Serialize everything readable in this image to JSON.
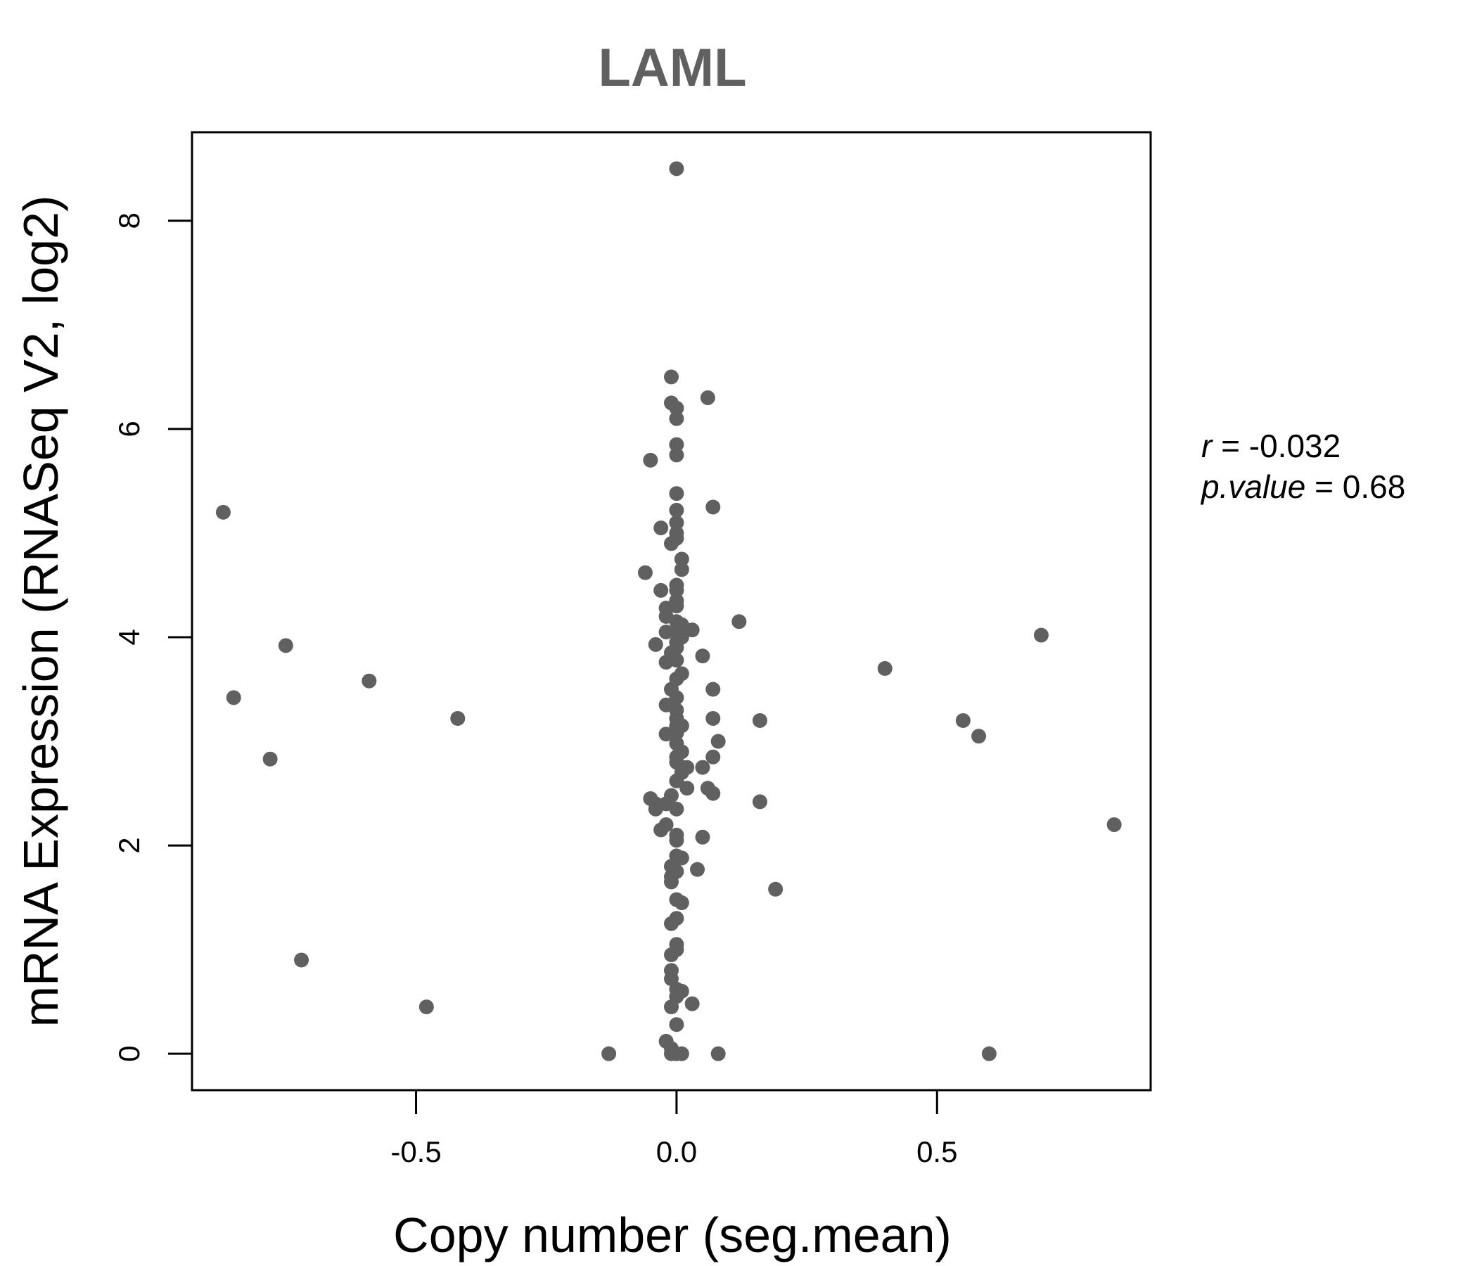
{
  "chart_data": {
    "type": "scatter",
    "title": "LAML",
    "xlabel": "Copy number (seg.mean)",
    "ylabel": "mRNA Expression (RNASeq V2, log2)",
    "xlim": [
      -0.93,
      0.91
    ],
    "ylim": [
      -0.35,
      8.85
    ],
    "xticks": [
      -0.5,
      0.0,
      0.5
    ],
    "xtick_labels": [
      "-0.5",
      "0.0",
      "0.5"
    ],
    "yticks": [
      0,
      2,
      4,
      6,
      8
    ],
    "ytick_labels": [
      "0",
      "2",
      "4",
      "6",
      "8"
    ],
    "grid": false,
    "marker_color": "#606060",
    "stats": {
      "r_label": "r",
      "r_value": "-0.032",
      "p_label": "p.value",
      "p_value": "0.68"
    },
    "points": [
      [
        0.0,
        8.5
      ],
      [
        -0.01,
        6.5
      ],
      [
        -0.01,
        6.25
      ],
      [
        0.0,
        6.2
      ],
      [
        0.0,
        6.1
      ],
      [
        0.06,
        6.3
      ],
      [
        0.0,
        5.85
      ],
      [
        0.0,
        5.75
      ],
      [
        -0.05,
        5.7
      ],
      [
        0.0,
        5.38
      ],
      [
        0.0,
        5.22
      ],
      [
        0.07,
        5.25
      ],
      [
        0.0,
        5.1
      ],
      [
        0.0,
        5.0
      ],
      [
        0.0,
        4.95
      ],
      [
        -0.03,
        5.05
      ],
      [
        -0.01,
        4.9
      ],
      [
        0.01,
        4.75
      ],
      [
        0.01,
        4.65
      ],
      [
        -0.06,
        4.62
      ],
      [
        0.0,
        4.5
      ],
      [
        0.0,
        4.45
      ],
      [
        -0.03,
        4.45
      ],
      [
        0.0,
        4.35
      ],
      [
        0.0,
        4.3
      ],
      [
        -0.02,
        4.28
      ],
      [
        -0.02,
        4.2
      ],
      [
        0.0,
        4.15
      ],
      [
        0.01,
        4.12
      ],
      [
        0.0,
        4.05
      ],
      [
        -0.02,
        4.05
      ],
      [
        0.03,
        4.07
      ],
      [
        0.01,
        4.0
      ],
      [
        0.0,
        3.95
      ],
      [
        -0.04,
        3.93
      ],
      [
        0.0,
        3.9
      ],
      [
        -0.01,
        3.85
      ],
      [
        0.0,
        3.78
      ],
      [
        -0.02,
        3.76
      ],
      [
        0.05,
        3.82
      ],
      [
        0.12,
        4.15
      ],
      [
        0.01,
        3.65
      ],
      [
        0.0,
        3.6
      ],
      [
        -0.01,
        3.5
      ],
      [
        0.07,
        3.5
      ],
      [
        0.0,
        3.42
      ],
      [
        -0.02,
        3.35
      ],
      [
        0.0,
        3.3
      ],
      [
        0.0,
        3.22
      ],
      [
        0.07,
        3.22
      ],
      [
        0.16,
        3.2
      ],
      [
        0.0,
        3.15
      ],
      [
        0.01,
        3.15
      ],
      [
        0.0,
        3.08
      ],
      [
        -0.02,
        3.07
      ],
      [
        0.08,
        3.0
      ],
      [
        0.0,
        2.98
      ],
      [
        0.01,
        2.9
      ],
      [
        0.0,
        2.85
      ],
      [
        0.07,
        2.85
      ],
      [
        0.0,
        2.8
      ],
      [
        0.01,
        2.75
      ],
      [
        0.02,
        2.75
      ],
      [
        0.05,
        2.75
      ],
      [
        0.01,
        2.7
      ],
      [
        0.0,
        2.62
      ],
      [
        0.02,
        2.55
      ],
      [
        0.06,
        2.55
      ],
      [
        0.07,
        2.5
      ],
      [
        -0.01,
        2.48
      ],
      [
        -0.05,
        2.45
      ],
      [
        -0.04,
        2.4
      ],
      [
        -0.02,
        2.4
      ],
      [
        0.0,
        2.35
      ],
      [
        -0.04,
        2.35
      ],
      [
        0.16,
        2.42
      ],
      [
        -0.02,
        2.2
      ],
      [
        -0.03,
        2.15
      ],
      [
        0.0,
        2.1
      ],
      [
        0.0,
        2.05
      ],
      [
        0.05,
        2.08
      ],
      [
        0.0,
        1.9
      ],
      [
        0.01,
        1.88
      ],
      [
        -0.01,
        1.8
      ],
      [
        0.0,
        1.75
      ],
      [
        -0.01,
        1.7
      ],
      [
        -0.01,
        1.65
      ],
      [
        0.04,
        1.77
      ],
      [
        0.19,
        1.58
      ],
      [
        0.0,
        1.48
      ],
      [
        0.01,
        1.45
      ],
      [
        0.0,
        1.3
      ],
      [
        -0.01,
        1.25
      ],
      [
        0.0,
        1.05
      ],
      [
        0.0,
        1.0
      ],
      [
        -0.01,
        0.95
      ],
      [
        -0.01,
        0.8
      ],
      [
        -0.01,
        0.72
      ],
      [
        0.0,
        0.62
      ],
      [
        0.01,
        0.6
      ],
      [
        0.0,
        0.55
      ],
      [
        -0.01,
        0.45
      ],
      [
        0.03,
        0.48
      ],
      [
        0.0,
        0.28
      ],
      [
        -0.02,
        0.12
      ],
      [
        -0.01,
        0.05
      ],
      [
        0.0,
        0.0
      ],
      [
        0.01,
        0.0
      ],
      [
        -0.01,
        0.0
      ],
      [
        -0.13,
        0.0
      ],
      [
        0.08,
        0.0
      ],
      [
        -0.87,
        5.2
      ],
      [
        -0.85,
        3.42
      ],
      [
        -0.75,
        3.92
      ],
      [
        -0.78,
        2.83
      ],
      [
        -0.72,
        0.9
      ],
      [
        -0.59,
        3.58
      ],
      [
        -0.48,
        0.45
      ],
      [
        -0.42,
        3.22
      ],
      [
        0.4,
        3.7
      ],
      [
        0.55,
        3.2
      ],
      [
        0.58,
        3.05
      ],
      [
        0.6,
        0.0
      ],
      [
        0.7,
        4.02
      ],
      [
        0.84,
        2.2
      ]
    ]
  }
}
